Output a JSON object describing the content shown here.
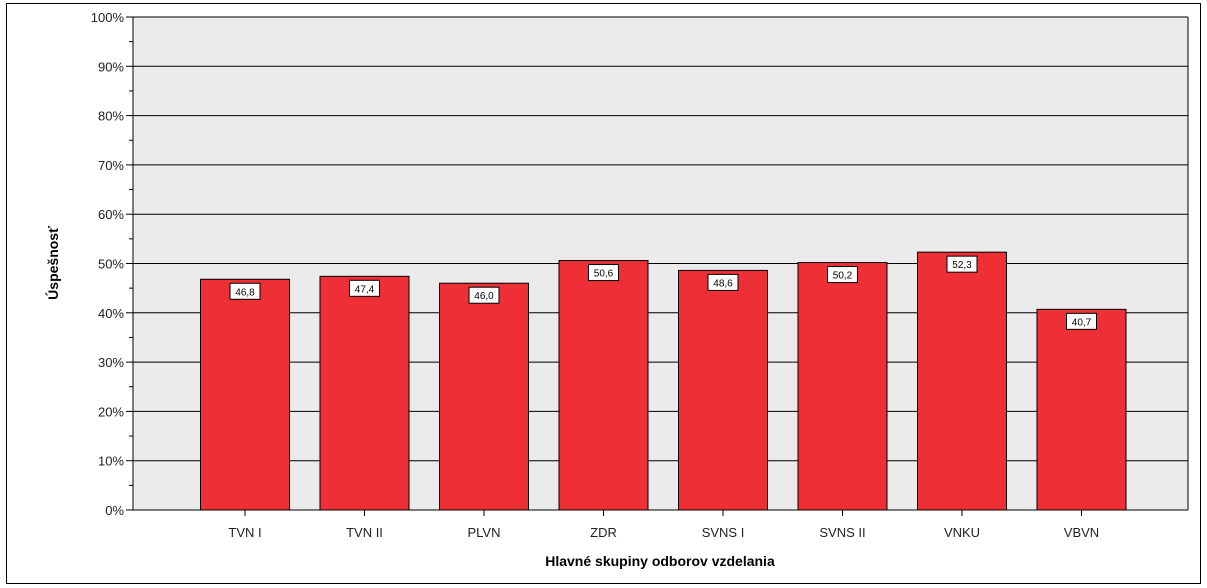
{
  "chart_data": {
    "type": "bar",
    "categories": [
      "TVN I",
      "TVN II",
      "PLVN",
      "ZDR",
      "SVNS I",
      "SVNS II",
      "VNKU",
      "VBVN"
    ],
    "values": [
      46.8,
      47.4,
      46.0,
      50.6,
      48.6,
      50.2,
      52.3,
      40.7
    ],
    "data_labels": [
      "46,8",
      "47,4",
      "46,0",
      "50,6",
      "48,6",
      "50,2",
      "52,3",
      "40,7"
    ],
    "xlabel": "Hlavné skupiny odborov vzdelania",
    "ylabel": "Úspešnosť",
    "ylim": [
      0,
      100
    ],
    "y_ticks": [
      "0%",
      "10%",
      "20%",
      "30%",
      "40%",
      "50%",
      "60%",
      "70%",
      "80%",
      "90%",
      "100%"
    ],
    "grid": "horizontal",
    "legend": "none",
    "colors": {
      "bar": "#ee2f35",
      "plot_background": "#ebebeb",
      "gridline": "#000000"
    }
  }
}
